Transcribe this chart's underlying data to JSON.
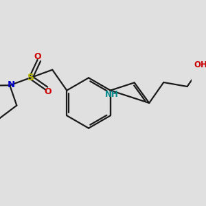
{
  "background_color": "#e0e0e0",
  "bond_color": "#1a1a1a",
  "bond_width": 1.6,
  "figsize": [
    3.0,
    3.0
  ],
  "dpi": 100,
  "colors": {
    "N": "#0000cc",
    "O": "#cc0000",
    "S": "#b8b800",
    "NH": "#008888",
    "OH": "#cc0000",
    "C": "#1a1a1a"
  },
  "xlim": [
    -3.8,
    4.2
  ],
  "ylim": [
    -3.2,
    3.2
  ]
}
